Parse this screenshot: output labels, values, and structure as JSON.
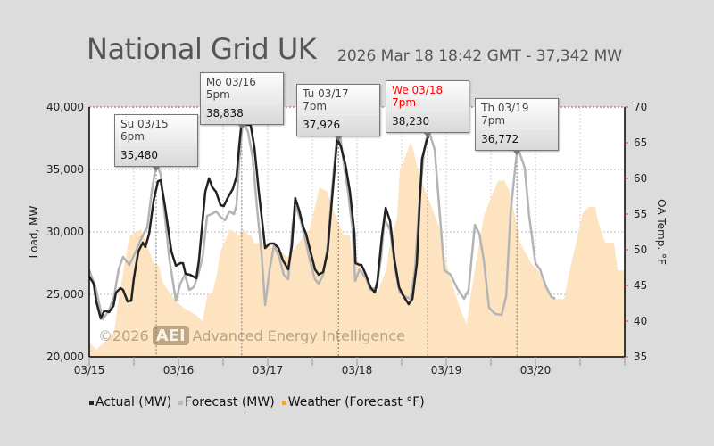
{
  "header": {
    "title": "National Grid UK",
    "subtitle": "2026 Mar 18 18:42 GMT - 37,342 MW"
  },
  "watermark": {
    "copyright": "©2026",
    "badge": "AEI",
    "name": "Advanced Energy Intelligence"
  },
  "colors": {
    "actual": "#222222",
    "forecast": "#b4b4b4",
    "weather": "#fde3bf",
    "weather_legend": "#f5a623",
    "highlight": "#ff0000",
    "limit_line": "#c04040"
  },
  "chart_data": {
    "type": "line",
    "title": "National Grid UK",
    "x_unit": "hours since 03/15 00:00",
    "xlim": [
      0,
      144
    ],
    "x_ticks": [
      {
        "hour": 0,
        "label": "03/15"
      },
      {
        "hour": 24,
        "label": "03/16"
      },
      {
        "hour": 48,
        "label": "03/17"
      },
      {
        "hour": 72,
        "label": "03/18"
      },
      {
        "hour": 96,
        "label": "03/19"
      },
      {
        "hour": 120,
        "label": "03/20"
      }
    ],
    "ylabel": "Load, MW",
    "ylim": [
      20000,
      40000
    ],
    "y_ticks": [
      "20,000",
      "25,000",
      "30,000",
      "35,000",
      "40,000"
    ],
    "y_tick_values": [
      20000,
      25000,
      30000,
      35000,
      40000
    ],
    "y2label": "OA Temp. °F",
    "y2lim": [
      35,
      70
    ],
    "y2_ticks": [
      "35",
      "40",
      "45",
      "50",
      "55",
      "60",
      "65",
      "70"
    ],
    "y2_tick_values": [
      35,
      40,
      45,
      50,
      55,
      60,
      65,
      70
    ],
    "grid": true,
    "legend_position": "bottom-left",
    "legend": [
      "Actual (MW)",
      "Forecast (MW)",
      "Weather (Forecast °F)"
    ],
    "series": [
      {
        "name": "Actual (MW)",
        "axis": "left",
        "points": [
          [
            0,
            26430
          ],
          [
            1.2,
            25860
          ],
          [
            1.9,
            24430
          ],
          [
            3.1,
            23070
          ],
          [
            4.1,
            23710
          ],
          [
            5.3,
            23570
          ],
          [
            6.5,
            24070
          ],
          [
            7.2,
            25140
          ],
          [
            8.4,
            25500
          ],
          [
            9.1,
            25360
          ],
          [
            10.3,
            24430
          ],
          [
            11.3,
            24500
          ],
          [
            12,
            26290
          ],
          [
            13.2,
            28430
          ],
          [
            14.4,
            29140
          ],
          [
            15.1,
            28790
          ],
          [
            16.1,
            29860
          ],
          [
            17.3,
            32500
          ],
          [
            18.5,
            34070
          ],
          [
            19.2,
            34140
          ],
          [
            20.4,
            32000
          ],
          [
            22.1,
            28430
          ],
          [
            23.3,
            27290
          ],
          [
            24.5,
            27500
          ],
          [
            25.2,
            27500
          ],
          [
            25.9,
            26640
          ],
          [
            27.1,
            26570
          ],
          [
            28.8,
            26290
          ],
          [
            29.5,
            27710
          ],
          [
            31.2,
            33210
          ],
          [
            32.2,
            34290
          ],
          [
            33.1,
            33570
          ],
          [
            34.1,
            33210
          ],
          [
            35.3,
            32140
          ],
          [
            36.2,
            32070
          ],
          [
            37.2,
            32710
          ],
          [
            38.6,
            33430
          ],
          [
            39.6,
            34430
          ],
          [
            40.3,
            36790
          ],
          [
            41,
            38838
          ],
          [
            42.5,
            38570
          ],
          [
            43.4,
            38570
          ],
          [
            44.4,
            36790
          ],
          [
            45.6,
            33210
          ],
          [
            47.3,
            28710
          ],
          [
            48.5,
            29070
          ],
          [
            49.7,
            29070
          ],
          [
            50.9,
            28710
          ],
          [
            52.1,
            27710
          ],
          [
            53.5,
            27000
          ],
          [
            54.5,
            28930
          ],
          [
            55.4,
            32710
          ],
          [
            56.4,
            31790
          ],
          [
            57.6,
            30360
          ],
          [
            58.3,
            29860
          ],
          [
            59.5,
            28430
          ],
          [
            60.7,
            27000
          ],
          [
            61.7,
            26570
          ],
          [
            62.9,
            26790
          ],
          [
            64.1,
            28430
          ],
          [
            65.3,
            32710
          ],
          [
            66.7,
            37500
          ],
          [
            67.7,
            36790
          ],
          [
            68.9,
            35360
          ],
          [
            70.1,
            33210
          ],
          [
            71.3,
            29860
          ],
          [
            71.6,
            27500
          ],
          [
            72.7,
            27360
          ],
          [
            73.2,
            27360
          ],
          [
            74.4,
            26570
          ],
          [
            75.6,
            25570
          ],
          [
            76.8,
            25140
          ],
          [
            77.5,
            26070
          ],
          [
            78.7,
            29640
          ],
          [
            79.7,
            31930
          ],
          [
            80.9,
            30860
          ],
          [
            82.1,
            27710
          ],
          [
            83.3,
            25570
          ],
          [
            84.5,
            24860
          ],
          [
            85.9,
            24210
          ],
          [
            86.9,
            24640
          ],
          [
            88.1,
            27500
          ],
          [
            88.8,
            32000
          ],
          [
            89.5,
            35860
          ],
          [
            90.7,
            37290
          ],
          [
            91.2,
            37640
          ]
        ]
      },
      {
        "name": "Forecast (MW)",
        "axis": "left",
        "points": [
          [
            0,
            26930
          ],
          [
            1.7,
            25570
          ],
          [
            3.6,
            23000
          ],
          [
            5.3,
            23710
          ],
          [
            6.7,
            24860
          ],
          [
            7.9,
            27000
          ],
          [
            9.1,
            28000
          ],
          [
            10.8,
            27360
          ],
          [
            12.5,
            28430
          ],
          [
            13.9,
            29430
          ],
          [
            15.6,
            30360
          ],
          [
            16.8,
            33210
          ],
          [
            18,
            35480
          ],
          [
            19.2,
            34640
          ],
          [
            20.4,
            31070
          ],
          [
            21.6,
            27710
          ],
          [
            23.3,
            24500
          ],
          [
            24.5,
            25860
          ],
          [
            25.7,
            26570
          ],
          [
            26.9,
            25360
          ],
          [
            28.1,
            25570
          ],
          [
            29.3,
            26570
          ],
          [
            30.5,
            28000
          ],
          [
            31.7,
            31290
          ],
          [
            32.9,
            31430
          ],
          [
            34.1,
            31640
          ],
          [
            35.3,
            31210
          ],
          [
            36.5,
            30930
          ],
          [
            37.7,
            31640
          ],
          [
            38.9,
            31430
          ],
          [
            39.6,
            32140
          ],
          [
            40.3,
            35570
          ],
          [
            41.3,
            38930
          ],
          [
            42.7,
            38000
          ],
          [
            43.9,
            36070
          ],
          [
            45.1,
            32000
          ],
          [
            46.3,
            28430
          ],
          [
            47.3,
            24140
          ],
          [
            48.5,
            27000
          ],
          [
            49.7,
            28930
          ],
          [
            51.1,
            28000
          ],
          [
            52.3,
            26570
          ],
          [
            53.5,
            26210
          ],
          [
            54.7,
            30570
          ],
          [
            55.7,
            32000
          ],
          [
            56.9,
            30860
          ],
          [
            58.3,
            29140
          ],
          [
            59.5,
            27500
          ],
          [
            60.7,
            26210
          ],
          [
            61.7,
            25860
          ],
          [
            62.9,
            26570
          ],
          [
            64.1,
            28930
          ],
          [
            65.3,
            33430
          ],
          [
            66.5,
            37290
          ],
          [
            67.4,
            37926
          ],
          [
            68.4,
            35570
          ],
          [
            69.6,
            33210
          ],
          [
            70.8,
            30140
          ],
          [
            71.5,
            26070
          ],
          [
            72.7,
            27000
          ],
          [
            74.4,
            26290
          ],
          [
            75.6,
            25360
          ],
          [
            77.3,
            25570
          ],
          [
            78.5,
            28000
          ],
          [
            79.4,
            31070
          ],
          [
            80.9,
            30140
          ],
          [
            82.3,
            27000
          ],
          [
            83.5,
            25140
          ],
          [
            85.2,
            24790
          ],
          [
            86.4,
            24640
          ],
          [
            87.6,
            27000
          ],
          [
            88.8,
            32500
          ],
          [
            90,
            36430
          ],
          [
            91.2,
            38230
          ],
          [
            92.9,
            36570
          ],
          [
            94.1,
            32000
          ],
          [
            95.5,
            26930
          ],
          [
            97.2,
            26570
          ],
          [
            98.9,
            25500
          ],
          [
            100.8,
            24640
          ],
          [
            102,
            25360
          ],
          [
            103.7,
            30570
          ],
          [
            104.9,
            29860
          ],
          [
            106.1,
            27710
          ],
          [
            107.5,
            23930
          ],
          [
            109.2,
            23430
          ],
          [
            110.9,
            23360
          ],
          [
            112.1,
            24860
          ],
          [
            113.3,
            31570
          ],
          [
            114.7,
            35570
          ],
          [
            115.2,
            36772
          ],
          [
            117.1,
            35140
          ],
          [
            118.3,
            31290
          ],
          [
            120,
            27500
          ],
          [
            121.2,
            27000
          ],
          [
            122.9,
            25570
          ],
          [
            124.3,
            24790
          ],
          [
            125.3,
            24640
          ]
        ]
      },
      {
        "name": "Weather (Forecast °F)",
        "axis": "right",
        "type": "area",
        "points": [
          [
            0,
            37.1
          ],
          [
            1.9,
            36
          ],
          [
            4.3,
            37.25
          ],
          [
            6.7,
            38.5
          ],
          [
            7.9,
            43.1
          ],
          [
            10.8,
            51.9
          ],
          [
            13.9,
            52.9
          ],
          [
            15.6,
            50.6
          ],
          [
            17.3,
            48.1
          ],
          [
            18.7,
            47.75
          ],
          [
            19.9,
            45.25
          ],
          [
            21.6,
            44
          ],
          [
            22.8,
            43.1
          ],
          [
            25.2,
            41.9
          ],
          [
            28.3,
            41
          ],
          [
            30.5,
            40
          ],
          [
            31.7,
            43.5
          ],
          [
            33.1,
            44
          ],
          [
            34.3,
            46.5
          ],
          [
            35.3,
            49.75
          ],
          [
            37.2,
            52.1
          ],
          [
            37.7,
            52.9
          ],
          [
            40.3,
            52.1
          ],
          [
            41.3,
            52.9
          ],
          [
            42.7,
            52.1
          ],
          [
            43.7,
            51.9
          ],
          [
            44.4,
            50.9
          ],
          [
            46.8,
            51
          ],
          [
            51.6,
            49.75
          ],
          [
            53.3,
            49
          ],
          [
            59.3,
            52.9
          ],
          [
            61.9,
            58.75
          ],
          [
            64.1,
            58.1
          ],
          [
            65.3,
            56
          ],
          [
            68.2,
            52.25
          ],
          [
            70.1,
            51.9
          ],
          [
            70.8,
            49
          ],
          [
            72.7,
            48.1
          ],
          [
            73.2,
            47.25
          ],
          [
            74.4,
            46
          ],
          [
            77.5,
            44
          ],
          [
            79.9,
            47.25
          ],
          [
            80.6,
            50
          ],
          [
            82.8,
            54.75
          ],
          [
            83.5,
            61
          ],
          [
            86.4,
            65
          ],
          [
            87.1,
            64.1
          ],
          [
            88.8,
            60.25
          ],
          [
            90.5,
            58.1
          ],
          [
            92.4,
            55.6
          ],
          [
            94.1,
            53.1
          ],
          [
            95.5,
            49.25
          ],
          [
            97.2,
            45.9
          ],
          [
            99.6,
            41.9
          ],
          [
            101.5,
            39.6
          ],
          [
            102.7,
            44
          ],
          [
            104.4,
            49.4
          ],
          [
            106.1,
            54.75
          ],
          [
            108,
            57.25
          ],
          [
            109.9,
            59.6
          ],
          [
            111.6,
            59.75
          ],
          [
            112.8,
            58.5
          ],
          [
            114.5,
            54.75
          ],
          [
            115.9,
            51
          ],
          [
            118.8,
            48.1
          ],
          [
            120.5,
            47.25
          ],
          [
            121.9,
            46
          ],
          [
            123.6,
            44
          ],
          [
            124.3,
            43.1
          ],
          [
            127.7,
            43.1
          ],
          [
            128.9,
            46.4
          ],
          [
            131.3,
            51.9
          ],
          [
            132.7,
            55.25
          ],
          [
            134.4,
            56
          ],
          [
            136.1,
            56
          ],
          [
            136.8,
            54
          ],
          [
            138.7,
            51
          ],
          [
            141.1,
            51
          ],
          [
            142.1,
            47.1
          ],
          [
            144,
            47.1
          ]
        ]
      }
    ],
    "annotations": [
      {
        "label": "Su 03/15 6pm",
        "value": "35,480",
        "hour": 18,
        "mw": 35480,
        "highlight": false
      },
      {
        "label": "Mo 03/16 5pm",
        "value": "38,838",
        "hour": 41,
        "mw": 38838,
        "highlight": false
      },
      {
        "label": "Tu 03/17 7pm",
        "value": "37,926",
        "hour": 67,
        "mw": 37926,
        "highlight": false
      },
      {
        "label": "We 03/18 7pm",
        "value": "38,230",
        "hour": 91,
        "mw": 38230,
        "highlight": true
      },
      {
        "label": "Th 03/19 7pm",
        "value": "36,772",
        "hour": 115,
        "mw": 36772,
        "highlight": false
      }
    ]
  }
}
